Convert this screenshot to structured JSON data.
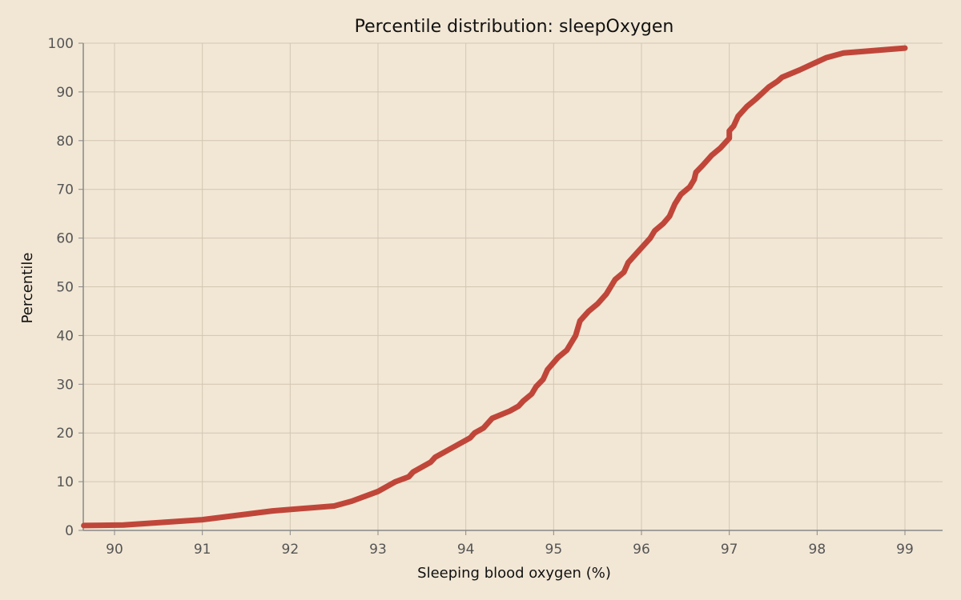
{
  "chart_data": {
    "type": "line",
    "title": "Percentile distribution: sleepOxygen",
    "xlabel": "Sleeping blood oxygen (%)",
    "ylabel": "Percentile",
    "xlim": [
      89.65,
      99.43
    ],
    "ylim": [
      0,
      100
    ],
    "xticks": [
      90,
      91,
      92,
      93,
      94,
      95,
      96,
      97,
      98,
      99
    ],
    "yticks": [
      0,
      10,
      20,
      30,
      40,
      50,
      60,
      70,
      80,
      90,
      100
    ],
    "grid": true,
    "line_color": "#c0463a",
    "series": [
      {
        "x": [
          89.65,
          90.1,
          91,
          91.8,
          92.5,
          92.7,
          93,
          93.2,
          93.35,
          93.4,
          93.6,
          93.65,
          93.8,
          94.05,
          94.1,
          94.2,
          94.3,
          94.5,
          94.6,
          94.65,
          94.75,
          94.8,
          94.88,
          94.93,
          95.05,
          95.15,
          95.2,
          95.25,
          95.3,
          95.4,
          95.5,
          95.6,
          95.7,
          95.8,
          95.85,
          95.95,
          96.0,
          96.1,
          96.15,
          96.25,
          96.32,
          96.38,
          96.45,
          96.55,
          96.6,
          96.62,
          96.7,
          96.8,
          96.9,
          97.0,
          97.0,
          97.05,
          97.1,
          97.2,
          97.3,
          97.45,
          97.55,
          97.6,
          97.8,
          98.1,
          98.3,
          99
        ],
        "y": [
          1,
          1.1,
          2.2,
          4,
          5,
          6,
          8,
          10,
          11,
          12,
          14,
          15,
          16.5,
          19,
          20,
          21,
          23,
          24.5,
          25.5,
          26.5,
          28,
          29.5,
          31,
          33,
          35.5,
          37,
          38.5,
          40,
          43,
          45,
          46.5,
          48.5,
          51.5,
          53,
          55,
          57,
          58,
          60,
          61.5,
          63,
          64.5,
          67,
          69,
          70.5,
          72,
          73.5,
          75,
          77,
          78.5,
          80.5,
          82,
          83,
          85,
          87,
          88.5,
          91,
          92.2,
          93,
          94.5,
          97,
          98,
          99
        ]
      }
    ]
  }
}
